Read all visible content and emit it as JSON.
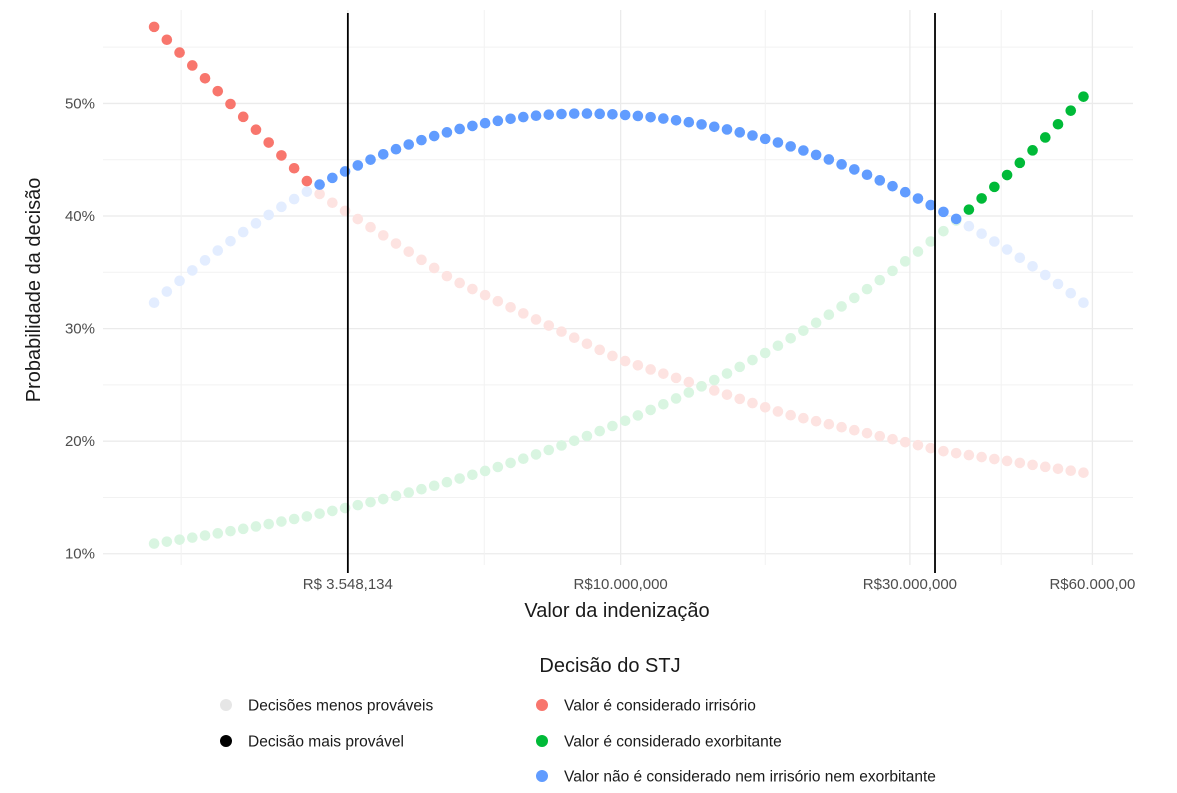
{
  "chart_data": {
    "type": "scatter",
    "title": "",
    "xlabel": "Valor da indenização",
    "ylabel": "Probabilidade da decisão",
    "x_scale": "log",
    "x_ticks": [
      {
        "value": 3548134,
        "label": "R$ 3.548,134"
      },
      {
        "value": 10000000,
        "label": "R$10.000,000"
      },
      {
        "value": 30000000,
        "label": "R$30.000,000"
      },
      {
        "value": 60000000,
        "label": "R$60.000,00"
      }
    ],
    "y_ticks": [
      {
        "value": 10,
        "label": "10%"
      },
      {
        "value": 20,
        "label": "20%"
      },
      {
        "value": 30,
        "label": "30%"
      },
      {
        "value": 40,
        "label": "40%"
      },
      {
        "value": 50,
        "label": "50%"
      }
    ],
    "xlim": [
      1400000,
      70000000
    ],
    "ylim": [
      9,
      58.3
    ],
    "vlines": [
      3548134,
      33000000
    ],
    "grid": true,
    "legend_position": "bottom",
    "x_range": [
      1700000,
      58000000
    ],
    "n_points": 74,
    "series": [
      {
        "name": "Valor é considerado irrisório",
        "color": "#F8766D",
        "y": [
          56.8,
          41.8,
          34.4,
          27.3,
          22.4,
          19.1,
          17.2
        ],
        "y_at": "x_range_fractions",
        "y_fractions": [
          0,
          0.18,
          0.32,
          0.5,
          0.68,
          0.85,
          1
        ]
      },
      {
        "name": "Valor é considerado exorbitante",
        "color": "#00BA38",
        "y": [
          10.9,
          15.5,
          20.5,
          25.5,
          31.0,
          37.0,
          41.0,
          50.6
        ]
      },
      {
        "name": "Valor não é considerado nem irrisório nem exorbitante",
        "color": "#619CFF",
        "y": [
          32.3,
          42.1,
          49.1,
          41.0,
          32.3
        ]
      }
    ],
    "legend": {
      "title": "Decisão do STJ",
      "items": [
        {
          "label": "Decisões menos prováveis",
          "color": "#e6e6e6"
        },
        {
          "label": "Decisão mais provável",
          "color": "#000000"
        },
        {
          "label": "Valor é considerado irrisório",
          "color": "#F8766D"
        },
        {
          "label": "Valor é considerado exorbitante",
          "color": "#00BA38"
        },
        {
          "label": "Valor não é considerado nem irrisório nem exorbitante",
          "color": "#619CFF"
        }
      ]
    }
  }
}
